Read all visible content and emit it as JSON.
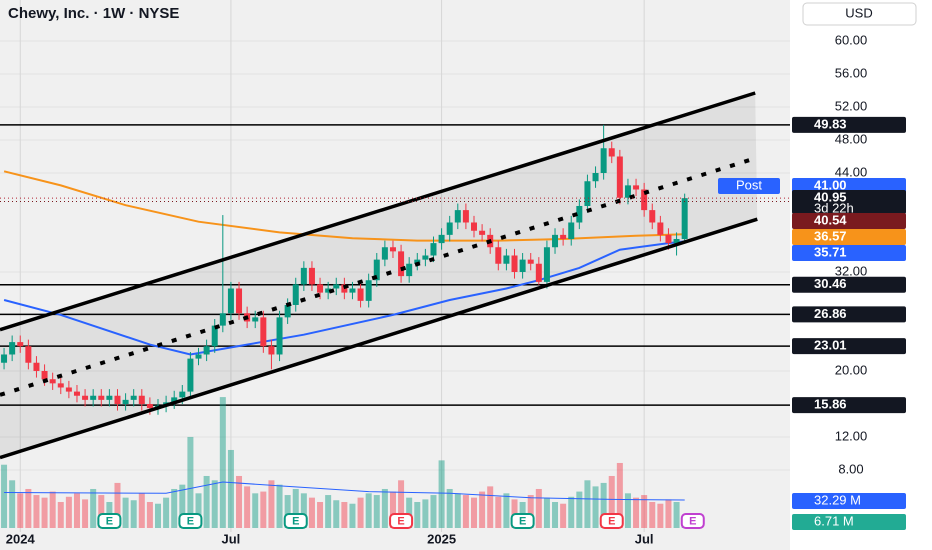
{
  "chart_data": {
    "type": "candlestick",
    "title": "Chewy, Inc. · 1W · NYSE",
    "currency": "USD",
    "categories": [
      null,
      null,
      "2024",
      null,
      null,
      null,
      null,
      null,
      null,
      null,
      null,
      null,
      null,
      null,
      null,
      null,
      null,
      null,
      null,
      null,
      null,
      null,
      null,
      null,
      null,
      null,
      null,
      null,
      "Jul",
      null,
      null,
      null,
      null,
      null,
      null,
      null,
      null,
      null,
      null,
      null,
      null,
      null,
      null,
      null,
      null,
      null,
      null,
      null,
      null,
      null,
      null,
      null,
      null,
      null,
      "2025",
      null,
      null,
      null,
      null,
      null,
      null,
      null,
      null,
      null,
      null,
      null,
      null,
      null,
      null,
      null,
      null,
      null,
      null,
      null,
      null,
      null,
      null,
      null,
      null,
      "Jul",
      null,
      null,
      null,
      null,
      null
    ],
    "open": [
      21,
      22,
      23.5,
      23,
      21,
      20,
      19,
      18.5,
      18,
      17.5,
      17,
      16.5,
      17,
      16.5,
      17,
      16,
      16.5,
      17,
      16,
      15.5,
      15.8,
      16.2,
      16.8,
      17.5,
      21.5,
      22,
      23,
      25.5,
      27,
      30,
      27,
      26,
      26.5,
      23,
      22,
      26.5,
      28,
      30.5,
      32.5,
      30.5,
      29.5,
      30,
      30.5,
      29.5,
      30,
      28.5,
      31,
      33.5,
      35,
      34.5,
      31.5,
      33,
      33.5,
      34,
      35.5,
      36.5,
      38,
      39.5,
      38,
      37,
      36.5,
      35,
      33,
      34,
      32,
      33.5,
      33,
      30.8,
      35,
      36.5,
      36,
      38,
      40,
      43,
      44,
      47,
      46,
      41,
      42.5,
      42,
      39.5,
      38,
      36.5,
      35.5,
      36
    ],
    "high": [
      22.8,
      24.3,
      24.3,
      23.8,
      21.8,
      20.8,
      19.8,
      19.3,
      18.8,
      18.3,
      17.8,
      17.8,
      17.8,
      17.8,
      17.8,
      17.3,
      17.8,
      17.8,
      16.8,
      16.6,
      17,
      17.6,
      18.3,
      22.3,
      22.8,
      23.8,
      26.3,
      38.9,
      30.8,
      30.8,
      27.8,
      27.3,
      27.3,
      23.8,
      27.3,
      28.8,
      31.3,
      33.3,
      33.3,
      31.3,
      30.8,
      31.3,
      31.3,
      30.8,
      30.8,
      31.8,
      34.3,
      35.8,
      35.8,
      35.3,
      33.8,
      34.3,
      34.8,
      36.3,
      37.3,
      38.8,
      40.3,
      40.3,
      38.8,
      37.8,
      37.3,
      35.8,
      34.8,
      34.8,
      34.3,
      34.3,
      33.8,
      35.8,
      37.3,
      37.3,
      38.8,
      40.8,
      43.8,
      44.8,
      49.83,
      47.8,
      46.8,
      43.3,
      43.3,
      42.8,
      40.3,
      38.8,
      37.3,
      36.8,
      41.5
    ],
    "low": [
      20.2,
      21.2,
      22.2,
      20.2,
      19.2,
      18.2,
      17.7,
      17.2,
      16.7,
      16.2,
      15.7,
      15.7,
      15.7,
      15.7,
      15.2,
      15.2,
      15.7,
      15.2,
      14.7,
      14.7,
      15,
      15.4,
      16,
      16.7,
      20.7,
      21.2,
      22.2,
      24.7,
      26.2,
      26.2,
      25.2,
      25.2,
      22.2,
      20.2,
      21.2,
      25.7,
      27.2,
      29.7,
      29.7,
      28.7,
      28.7,
      29.2,
      28.7,
      28.7,
      27.7,
      27.7,
      30.2,
      32.7,
      33.7,
      30.7,
      30.7,
      32.2,
      32.7,
      33.2,
      34.7,
      35.7,
      37.2,
      37.2,
      36.2,
      35.7,
      34.2,
      32.2,
      32.2,
      31.2,
      31.2,
      32.2,
      30.46,
      30,
      34.2,
      35.2,
      35.2,
      37.2,
      39.2,
      42.2,
      43.2,
      45.2,
      40.2,
      40.2,
      41.2,
      38.7,
      37.2,
      35.7,
      34.7,
      34,
      35.5
    ],
    "close": [
      22,
      23.5,
      23,
      21,
      20,
      19,
      18.5,
      18,
      17.5,
      17,
      16.5,
      17,
      16.5,
      17,
      16,
      16.5,
      17,
      16,
      15.5,
      15.8,
      16.2,
      16.8,
      17.5,
      21.5,
      22,
      23,
      25.5,
      27,
      30,
      27,
      26,
      26.5,
      23,
      22,
      26.5,
      28,
      30.5,
      32.5,
      30.5,
      29.5,
      30,
      30.5,
      29.5,
      30,
      28.5,
      31,
      33.5,
      35,
      34.5,
      31.5,
      33,
      33.5,
      34,
      35.5,
      36.5,
      38,
      39.5,
      38,
      37,
      36.5,
      35,
      33,
      34,
      32,
      33.5,
      33,
      30.8,
      35,
      36.5,
      36,
      38,
      40,
      43,
      44,
      47,
      46,
      41,
      42.5,
      42,
      39.5,
      38,
      36.5,
      35.5,
      36,
      40.95
    ],
    "up_color": "#089981",
    "down_color": "#f23645",
    "volume": [
      73,
      55,
      40,
      45,
      38,
      35,
      42,
      30,
      36,
      40,
      33,
      45,
      38,
      30,
      52,
      35,
      32,
      40,
      30,
      28,
      35,
      45,
      50,
      105,
      40,
      60,
      55,
      151,
      90,
      60,
      48,
      40,
      42,
      55,
      50,
      38,
      45,
      40,
      35,
      30,
      38,
      32,
      30,
      28,
      35,
      40,
      38,
      45,
      42,
      55,
      35,
      30,
      33,
      38,
      78,
      45,
      40,
      38,
      35,
      42,
      48,
      36,
      40,
      33,
      30,
      38,
      45,
      35,
      30,
      28,
      36,
      42,
      55,
      48,
      52,
      60,
      75,
      40,
      35,
      38,
      30,
      28,
      33,
      30,
      6.71
    ],
    "xlim": [
      -0.5,
      97
    ],
    "ylim": [
      -1.7,
      64.97
    ],
    "yticks": [
      {
        "value": 8,
        "label": "8.00"
      },
      {
        "value": 12,
        "label": "12.00"
      },
      {
        "value": 20,
        "label": "20.00"
      },
      {
        "value": 32,
        "label": "32.00"
      },
      {
        "value": 44,
        "label": "44.00"
      },
      {
        "value": 48,
        "label": "48.00"
      },
      {
        "value": 52,
        "label": "52.00"
      },
      {
        "value": 56,
        "label": "56.00"
      },
      {
        "value": 60,
        "label": "60.00"
      }
    ],
    "grid": true,
    "moving_averages": [
      {
        "color": "#f7931a",
        "x": [
          0,
          7,
          15,
          24,
          34,
          43,
          51,
          61,
          69,
          78,
          84
        ],
        "values": [
          44.2,
          42.5,
          40.1,
          38.1,
          36.8,
          36.1,
          35.8,
          35.8,
          36,
          36.4,
          36.57
        ]
      },
      {
        "color": "#2962ff",
        "x": [
          0,
          7,
          18,
          23,
          30,
          37,
          48,
          55,
          62,
          66,
          71,
          76,
          82,
          84
        ],
        "values": [
          28.6,
          26.8,
          23.2,
          22,
          23.2,
          24.4,
          26.8,
          28.6,
          30,
          31,
          32.5,
          34.7,
          35.5,
          35.71
        ]
      }
    ],
    "volume_ma": {
      "color": "#2962ff",
      "x": [
        0,
        20,
        27,
        35,
        45,
        55,
        65,
        75,
        84
      ],
      "values": [
        41,
        40,
        53,
        48,
        42,
        40,
        35,
        33,
        32.29
      ]
    },
    "channel": [
      {
        "x": [
          -0.5,
          92.7
        ],
        "values": [
          25,
          53.7
        ],
        "style": "solid"
      },
      {
        "x": [
          -0.5,
          92.1
        ],
        "values": [
          17.1,
          45.6
        ],
        "style": "dashed"
      },
      {
        "x": [
          -0.5,
          92.96
        ],
        "values": [
          9.5,
          38.4
        ],
        "style": "solid"
      }
    ],
    "levels": [
      49.83,
      30.46,
      26.86,
      23.01,
      15.86
    ],
    "price_tags": [
      {
        "value": 41,
        "label": "41.00",
        "tag": "Post",
        "color": "#2962ff"
      },
      {
        "value": 40.95,
        "label": "40.95",
        "sub": "3d 22h",
        "color": "#131722"
      },
      {
        "value": 40.54,
        "label": "40.54",
        "color": "#7a1a1f"
      },
      {
        "value": 36.57,
        "label": "36.57",
        "color": "#f7931a"
      },
      {
        "value": 35.71,
        "label": "35.71",
        "color": "#2962ff"
      }
    ],
    "volume_tags": [
      {
        "value": 32.29,
        "label": "32.29 M",
        "color": "#2962ff"
      },
      {
        "value": 6.71,
        "label": "6.71 M",
        "color": "#22ab94"
      }
    ],
    "earnings": [
      {
        "x": 13,
        "label": "E",
        "color": "#089981"
      },
      {
        "x": 23,
        "label": "E",
        "color": "#089981"
      },
      {
        "x": 36,
        "label": "E",
        "color": "#089981"
      },
      {
        "x": 49,
        "label": "E",
        "color": "#f23645"
      },
      {
        "x": 64,
        "label": "E",
        "color": "#089981"
      },
      {
        "x": 75,
        "label": "E",
        "color": "#f23645"
      },
      {
        "x": 85,
        "label": "E",
        "color": "#c040d0"
      }
    ]
  }
}
